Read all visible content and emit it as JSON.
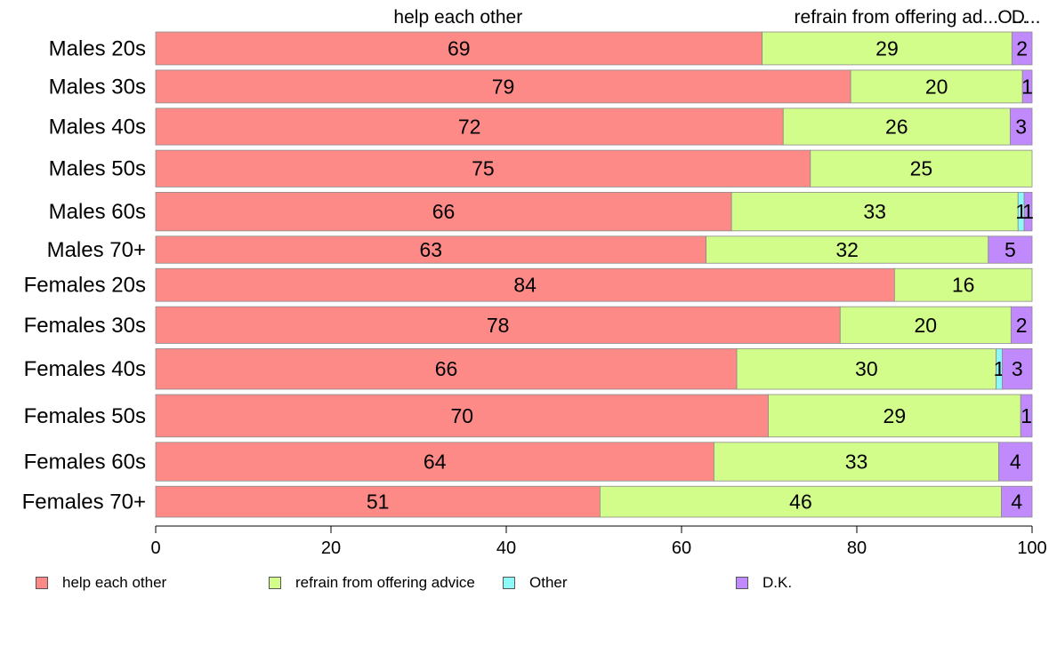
{
  "chart_data": {
    "type": "bar",
    "orientation": "horizontal",
    "stacked": true,
    "categories": [
      "Males 20s",
      "Males 30s",
      "Males 40s",
      "Males 50s",
      "Males 60s",
      "Males 70+",
      "Females 20s",
      "Females 30s",
      "Females 40s",
      "Females 50s",
      "Females 60s",
      "Females 70+"
    ],
    "bar_weights": [
      0.85,
      0.85,
      0.95,
      0.95,
      1.0,
      0.7,
      0.85,
      0.95,
      1.05,
      1.1,
      1.0,
      0.8
    ],
    "series": [
      {
        "name": "help each other",
        "color": "#fe8a87",
        "values": [
          69.2,
          79.3,
          71.6,
          74.7,
          65.7,
          62.8,
          84.3,
          78.1,
          66.3,
          69.9,
          63.7,
          50.7
        ],
        "labels": [
          "69",
          "79",
          "72",
          "75",
          "66",
          "63",
          "84",
          "78",
          "66",
          "70",
          "64",
          "51"
        ]
      },
      {
        "name": "refrain from offering advice",
        "color": "#d2fd8b",
        "values": [
          28.5,
          19.6,
          25.9,
          25.3,
          32.7,
          32.2,
          15.7,
          19.5,
          29.6,
          28.8,
          32.5,
          45.8
        ],
        "labels": [
          "29",
          "20",
          "26",
          "25",
          "33",
          "32",
          "16",
          "20",
          "30",
          "29",
          "33",
          "46"
        ]
      },
      {
        "name": "Other",
        "color": "#8cf8f8",
        "values": [
          0,
          0,
          0,
          0,
          0.7,
          0,
          0,
          0,
          0.7,
          0,
          0,
          0
        ],
        "labels": [
          "",
          "",
          "",
          "",
          "1",
          "",
          "",
          "",
          "1",
          "",
          "",
          ""
        ]
      },
      {
        "name": "D.K.",
        "color": "#c08afc",
        "values": [
          2.3,
          1.1,
          2.5,
          0,
          0.9,
          5.0,
          0,
          2.4,
          3.4,
          1.3,
          3.8,
          3.5
        ],
        "labels": [
          "2",
          "1",
          "3",
          "",
          "1",
          "5",
          "",
          "2",
          "3",
          "1",
          "4",
          "4"
        ]
      }
    ],
    "top_labels": [
      {
        "text": "help each other",
        "x_value": 34.5
      },
      {
        "text": "refrain from offering ad...",
        "x_value": 84.5
      },
      {
        "text": "O...",
        "x_value": 97.8
      },
      {
        "text": "D...",
        "x_value": 99.3
      }
    ],
    "xlim": [
      0,
      100
    ],
    "xticks": [
      0,
      20,
      40,
      60,
      80,
      100
    ],
    "xtick_labels": [
      "0",
      "20",
      "40",
      "60",
      "80",
      "100"
    ],
    "legend_position": "bottom",
    "grid": false
  },
  "legend": [
    {
      "label": "help each other",
      "color": "#fe8a87"
    },
    {
      "label": "refrain from offering advice",
      "color": "#d2fd8b"
    },
    {
      "label": "Other",
      "color": "#8cf8f8"
    },
    {
      "label": "D.K.",
      "color": "#c08afc"
    }
  ]
}
